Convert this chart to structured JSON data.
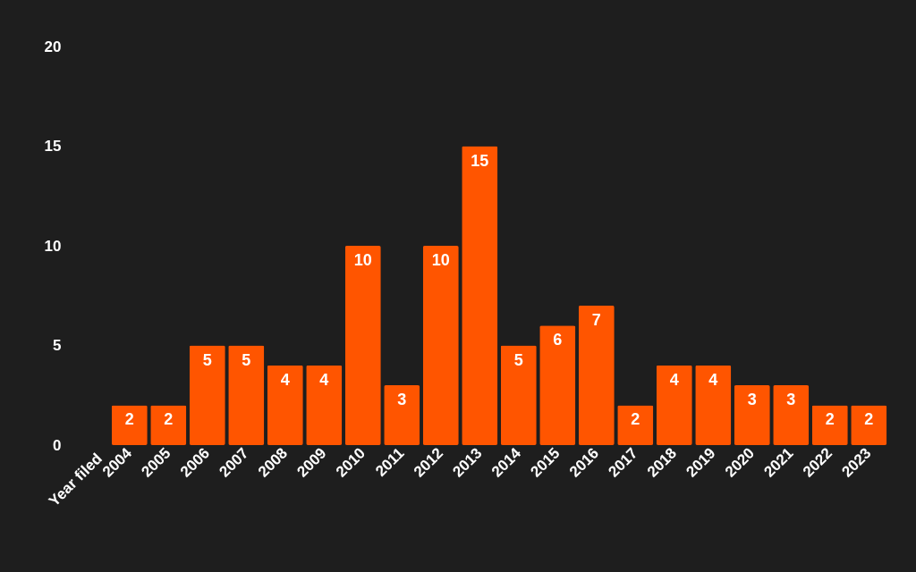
{
  "chart_data": {
    "type": "bar",
    "xlabel": "Year filed",
    "categories": [
      "2004",
      "2005",
      "2006",
      "2007",
      "2008",
      "2009",
      "2010",
      "2011",
      "2012",
      "2013",
      "2014",
      "2015",
      "2016",
      "2017",
      "2018",
      "2019",
      "2020",
      "2021",
      "2022",
      "2023"
    ],
    "values": [
      2,
      2,
      5,
      5,
      4,
      4,
      10,
      3,
      10,
      15,
      5,
      6,
      7,
      2,
      4,
      4,
      3,
      3,
      2,
      2
    ],
    "color": "#ff5500",
    "ylim": [
      0,
      20
    ],
    "yticks": [
      0,
      5,
      10,
      15,
      20
    ],
    "grid": false,
    "data_labels": true
  }
}
